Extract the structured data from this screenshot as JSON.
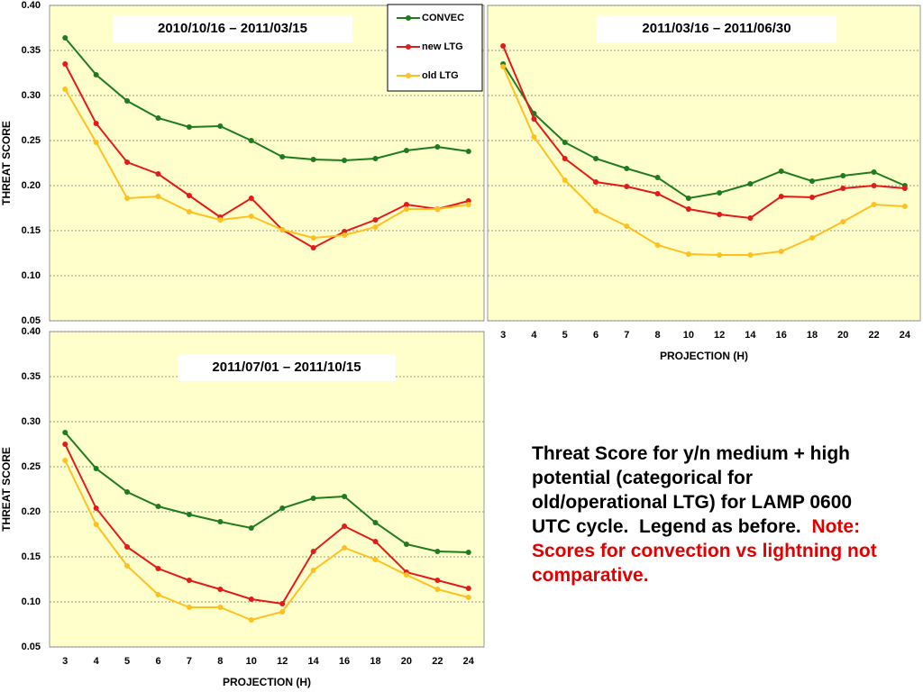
{
  "chart_data": [
    {
      "type": "line",
      "title": "2010/10/16 – 2011/03/15",
      "ylabel": "THREAT  SCORE",
      "ylim": [
        0.05,
        0.4
      ],
      "yticks": [
        {
          "value": 0.05,
          "label": "0.05"
        },
        {
          "value": 0.1,
          "label": "0.10"
        },
        {
          "value": 0.15,
          "label": "0.15"
        },
        {
          "value": 0.2,
          "label": "0.20"
        },
        {
          "value": 0.25,
          "label": "0.25"
        },
        {
          "value": 0.3,
          "label": "0.30"
        },
        {
          "value": 0.35,
          "label": "0.35"
        },
        {
          "value": 0.4,
          "label": "0.40"
        }
      ],
      "grid": true,
      "series": [
        {
          "name": "CONVEC",
          "color": "#1e7b1e",
          "values": [
            0.364,
            0.323,
            0.294,
            0.275,
            0.265,
            0.266,
            0.25,
            0.232,
            0.229,
            0.228,
            0.23,
            0.239,
            0.243,
            0.238
          ]
        },
        {
          "name": "new LTG",
          "color": "#e41a1a",
          "values": [
            0.335,
            0.269,
            0.226,
            0.213,
            0.189,
            0.165,
            0.186,
            0.151,
            0.131,
            0.149,
            0.162,
            0.179,
            0.174,
            0.183
          ]
        },
        {
          "name": "old LTG",
          "color": "#ffc020",
          "values": [
            0.307,
            0.248,
            0.186,
            0.188,
            0.171,
            0.162,
            0.166,
            0.151,
            0.142,
            0.145,
            0.154,
            0.174,
            0.174,
            0.179
          ]
        }
      ]
    },
    {
      "type": "line",
      "title": "2011/03/16 – 2011/06/30",
      "xlabel": "PROJECTION  (H)",
      "categories": [
        3,
        4,
        5,
        6,
        7,
        8,
        10,
        12,
        14,
        16,
        18,
        20,
        22,
        24
      ],
      "ylim": [
        0.05,
        0.4
      ],
      "yticks": [
        0.05,
        0.1,
        0.15,
        0.2,
        0.25,
        0.3,
        0.35,
        0.4
      ],
      "grid": true,
      "series": [
        {
          "color": "#1e7b1e",
          "values": [
            0.335,
            0.28,
            0.248,
            0.23,
            0.219,
            0.209,
            0.186,
            0.192,
            0.202,
            0.216,
            0.205,
            0.211,
            0.215,
            0.2
          ]
        },
        {
          "color": "#e41a1a",
          "values": [
            0.355,
            0.274,
            0.23,
            0.204,
            0.199,
            0.191,
            0.174,
            0.168,
            0.164,
            0.188,
            0.187,
            0.197,
            0.2,
            0.197
          ]
        },
        {
          "color": "#ffc020",
          "values": [
            0.332,
            0.254,
            0.206,
            0.172,
            0.155,
            0.134,
            0.124,
            0.123,
            0.123,
            0.127,
            0.142,
            0.16,
            0.179,
            0.177
          ]
        }
      ]
    },
    {
      "type": "line",
      "title": "2011/07/01 – 2011/10/15",
      "ylabel": "THREAT  SCORE",
      "xlabel": "PROJECTION  (H)",
      "categories": [
        3,
        4,
        5,
        6,
        7,
        8,
        10,
        12,
        14,
        16,
        18,
        20,
        22,
        24
      ],
      "ylim": [
        0.05,
        0.4
      ],
      "yticks": [
        {
          "value": 0.05,
          "label": "0.05"
        },
        {
          "value": 0.1,
          "label": "0.10"
        },
        {
          "value": 0.15,
          "label": "0.15"
        },
        {
          "value": 0.2,
          "label": "0.20"
        },
        {
          "value": 0.25,
          "label": "0.25"
        },
        {
          "value": 0.3,
          "label": "0.30"
        },
        {
          "value": 0.35,
          "label": "0.35"
        },
        {
          "value": 0.4,
          "label": "0.40"
        }
      ],
      "grid": true,
      "series": [
        {
          "color": "#1e7b1e",
          "values": [
            0.288,
            0.248,
            0.222,
            0.206,
            0.197,
            0.189,
            0.182,
            0.204,
            0.215,
            0.217,
            0.188,
            0.164,
            0.156,
            0.155
          ]
        },
        {
          "color": "#e41a1a",
          "values": [
            0.275,
            0.204,
            0.161,
            0.137,
            0.124,
            0.114,
            0.103,
            0.098,
            0.156,
            0.184,
            0.167,
            0.133,
            0.124,
            0.115
          ]
        },
        {
          "color": "#ffc020",
          "values": [
            0.257,
            0.186,
            0.14,
            0.108,
            0.094,
            0.094,
            0.08,
            0.089,
            0.135,
            0.16,
            0.147,
            0.13,
            0.114,
            0.105
          ]
        }
      ]
    }
  ],
  "caption": {
    "text": "Threat Score for y/n medium + high potential (categorical for old/operational LTG) for LAMP 0600 UTC cycle.  Legend as before.",
    "note": "Note:  Scores for convection vs lightning not comparative."
  }
}
